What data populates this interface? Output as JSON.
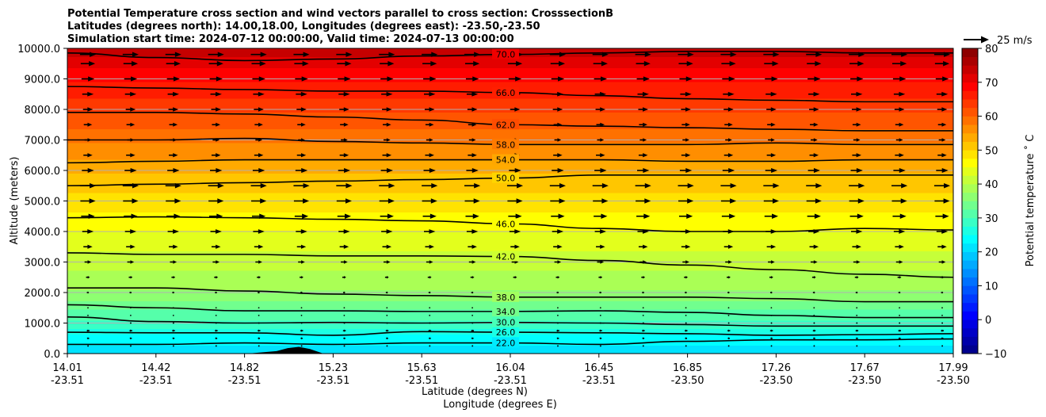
{
  "chart_data": {
    "type": "heatmap",
    "title_lines": [
      "Potential Temperature cross section and wind vectors parallel to cross section: CrosssectionB",
      "Latitudes (degrees north): 14.00,18.00, Longitudes (degrees east): -23.50,-23.50",
      "Simulation start time: 2024-07-12 00:00:00, Valid time: 2024-07-13 00:00:00"
    ],
    "xlabel_line1": "Latitude (degrees N)",
    "xlabel_line2": "Longitude (degrees E)",
    "ylabel": "Altitude (meters)",
    "colorbar_label": "Potential temperature ˚ C",
    "quiver_key_label": "25 m/s",
    "ylim": [
      0,
      10000
    ],
    "y_ticks": [
      "0.0",
      "1000.0",
      "2000.0",
      "3000.0",
      "4000.0",
      "5000.0",
      "6000.0",
      "7000.0",
      "8000.0",
      "9000.0",
      "10000.0"
    ],
    "x_ticks": [
      {
        "lat": "14.01",
        "lon": "-23.51"
      },
      {
        "lat": "14.42",
        "lon": "-23.51"
      },
      {
        "lat": "14.82",
        "lon": "-23.51"
      },
      {
        "lat": "15.23",
        "lon": "-23.51"
      },
      {
        "lat": "15.63",
        "lon": "-23.51"
      },
      {
        "lat": "16.04",
        "lon": "-23.51"
      },
      {
        "lat": "16.45",
        "lon": "-23.51"
      },
      {
        "lat": "16.85",
        "lon": "-23.50"
      },
      {
        "lat": "17.26",
        "lon": "-23.50"
      },
      {
        "lat": "17.67",
        "lon": "-23.50"
      },
      {
        "lat": "17.99",
        "lon": "-23.50"
      }
    ],
    "colorbar_range": [
      -10,
      80
    ],
    "colorbar_ticks": [
      "−10",
      "0",
      "10",
      "20",
      "30",
      "40",
      "50",
      "60",
      "70",
      "80"
    ],
    "colormap": "jet",
    "grid": "horizontal lines at y ticks",
    "contours": [
      {
        "label": "22.0",
        "value": 22,
        "alts": [
          300,
          300,
          350,
          300,
          350,
          350,
          300,
          400,
          450,
          450,
          480
        ]
      },
      {
        "label": "26.0",
        "value": 26,
        "alts": [
          700,
          680,
          680,
          600,
          720,
          700,
          680,
          650,
          600,
          620,
          650
        ]
      },
      {
        "label": "30.0",
        "value": 30,
        "alts": [
          1200,
          1050,
          1000,
          1020,
          1000,
          1020,
          1000,
          950,
          900,
          900,
          900
        ]
      },
      {
        "label": "34.0",
        "value": 34,
        "alts": [
          1600,
          1500,
          1400,
          1400,
          1380,
          1380,
          1400,
          1350,
          1250,
          1180,
          1180
        ]
      },
      {
        "label": "38.0",
        "value": 38,
        "alts": [
          2150,
          2150,
          2050,
          1950,
          1900,
          1850,
          1850,
          1850,
          1800,
          1700,
          1700
        ]
      },
      {
        "label": "42.0",
        "value": 42,
        "alts": [
          3300,
          3250,
          3250,
          3200,
          3200,
          3180,
          3050,
          2900,
          2750,
          2600,
          2500
        ]
      },
      {
        "label": "46.0",
        "value": 46,
        "alts": [
          4450,
          4480,
          4450,
          4400,
          4350,
          4250,
          4100,
          4000,
          4000,
          4100,
          4050
        ]
      },
      {
        "label": "50.0",
        "value": 50,
        "alts": [
          5500,
          5550,
          5600,
          5650,
          5700,
          5750,
          5850,
          5850,
          5850,
          5850,
          5850
        ]
      },
      {
        "label": "54.0",
        "value": 54,
        "alts": [
          6250,
          6300,
          6350,
          6350,
          6350,
          6350,
          6350,
          6300,
          6300,
          6350,
          6350
        ]
      },
      {
        "label": "58.0",
        "value": 58,
        "alts": [
          7000,
          7000,
          7050,
          6950,
          6900,
          6850,
          6850,
          6850,
          6900,
          6850,
          6850
        ]
      },
      {
        "label": "62.0",
        "value": 62,
        "alts": [
          7900,
          7900,
          7850,
          7750,
          7650,
          7500,
          7450,
          7400,
          7350,
          7300,
          7300
        ]
      },
      {
        "label": "66.0",
        "value": 66,
        "alts": [
          8750,
          8700,
          8650,
          8600,
          8600,
          8550,
          8450,
          8350,
          8300,
          8250,
          8250
        ]
      },
      {
        "label": "70.0",
        "value": 70,
        "alts": [
          9850,
          9700,
          9600,
          9650,
          9750,
          9800,
          9850,
          9900,
          9900,
          9850,
          9850
        ]
      }
    ],
    "temperature_profile": {
      "altitudes": [
        0,
        500,
        1000,
        1500,
        2000,
        3000,
        4000,
        5000,
        6000,
        7000,
        8000,
        9000,
        10000
      ],
      "values": [
        20,
        24,
        29,
        33,
        37,
        41,
        45,
        49,
        53,
        58,
        63,
        68,
        74
      ]
    },
    "wind_vectors": {
      "direction": "east (parallel to cross section)",
      "speed_by_altitude_ms": [
        {
          "alt": 250,
          "speed": -2
        },
        {
          "alt": 500,
          "speed": -3
        },
        {
          "alt": 750,
          "speed": -4
        },
        {
          "alt": 1000,
          "speed": -2
        },
        {
          "alt": 1250,
          "speed": -1
        },
        {
          "alt": 1500,
          "speed": 0
        },
        {
          "alt": 2000,
          "speed": 3
        },
        {
          "alt": 2500,
          "speed": 5
        },
        {
          "alt": 3000,
          "speed": 9
        },
        {
          "alt": 3500,
          "speed": 12
        },
        {
          "alt": 4000,
          "speed": 15
        },
        {
          "alt": 4500,
          "speed": 18
        },
        {
          "alt": 5000,
          "speed": 20
        },
        {
          "alt": 5500,
          "speed": 21
        },
        {
          "alt": 6000,
          "speed": 16
        },
        {
          "alt": 6500,
          "speed": 12
        },
        {
          "alt": 7000,
          "speed": 9
        },
        {
          "alt": 7500,
          "speed": 11
        },
        {
          "alt": 8000,
          "speed": 13
        },
        {
          "alt": 8500,
          "speed": 15
        },
        {
          "alt": 9000,
          "speed": 17
        },
        {
          "alt": 9500,
          "speed": 19
        },
        {
          "alt": 9800,
          "speed": 21
        }
      ]
    },
    "terrain": {
      "lats": [
        14.82,
        14.95,
        15.0,
        15.05,
        15.1,
        15.16
      ],
      "heights": [
        0,
        80,
        180,
        220,
        150,
        0
      ]
    }
  }
}
